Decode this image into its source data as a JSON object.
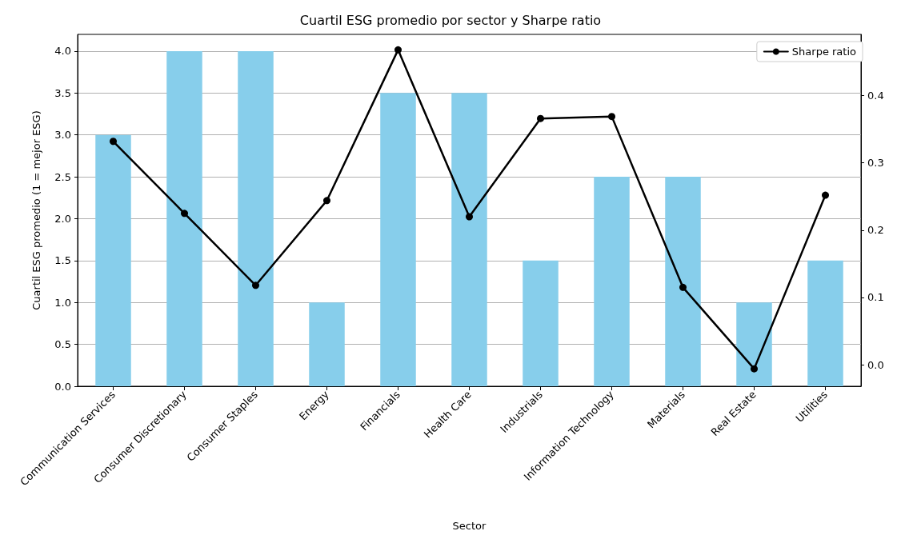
{
  "chart_data": {
    "type": "bar",
    "title": "Cuartil ESG promedio por sector y Sharpe ratio",
    "xlabel": "Sector",
    "ylabel": "Cuartil ESG promedio (1 = mejor ESG)",
    "categories": [
      "Communication Services",
      "Consumer Discretionary",
      "Consumer Staples",
      "Energy",
      "Financials",
      "Health Care",
      "Industrials",
      "Information Technology",
      "Materials",
      "Real Estate",
      "Utilities"
    ],
    "series": [
      {
        "color": "#87ceeb",
        "values": [
          3,
          4,
          4,
          1,
          3.5,
          3.5,
          1.5,
          2.5,
          2.5,
          1,
          1.5
        ]
      },
      {
        "type": "line",
        "name": "Sharpe ratio",
        "color": "#000000",
        "axis": "y2",
        "marker": "circle",
        "line_style": "solid",
        "values": [
          0.332,
          0.225,
          0.118,
          0.244,
          0.468,
          0.22,
          0.366,
          0.369,
          0.115,
          -0.006,
          0.252
        ]
      }
    ],
    "ylim": [
      0,
      4.2
    ],
    "yticks": [
      {
        "value": 0,
        "label": "0.0"
      },
      {
        "value": 0.5,
        "label": "0.5"
      },
      {
        "value": 1,
        "label": "1.0"
      },
      {
        "value": 1.5,
        "label": "1.5"
      },
      {
        "value": 2,
        "label": "2.0"
      },
      {
        "value": 2.5,
        "label": "2.5"
      },
      {
        "value": 3,
        "label": "3.0"
      },
      {
        "value": 3.5,
        "label": "3.5"
      },
      {
        "value": 4,
        "label": "4.0"
      }
    ],
    "y2lim": [
      -0.032,
      0.491
    ],
    "y2ticks": [
      {
        "value": 0,
        "label": "0.0"
      },
      {
        "value": 0.1,
        "label": "0.1"
      },
      {
        "value": 0.2,
        "label": "0.2"
      },
      {
        "value": 0.3,
        "label": "0.3"
      },
      {
        "value": 0.4,
        "label": "0.4"
      }
    ],
    "grid": "y",
    "legend": "top right"
  }
}
